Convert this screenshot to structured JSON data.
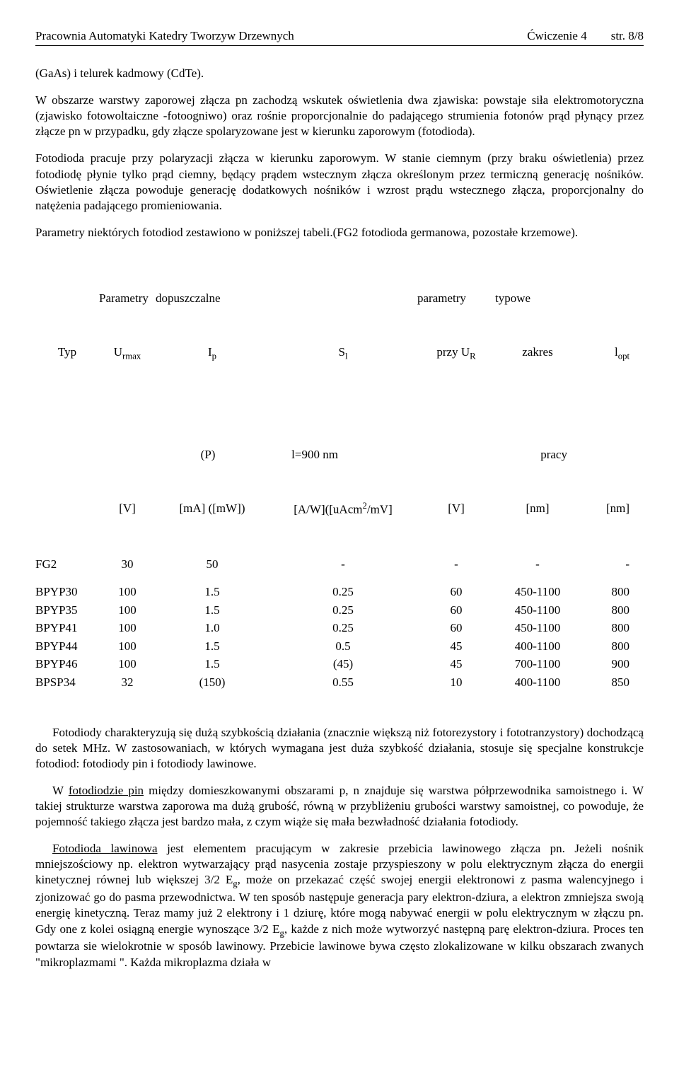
{
  "header": {
    "left": "Pracownia Automatyki Katedry Tworzyw Drzewnych",
    "center": "Ćwiczenie 4",
    "right": "str. 8/8"
  },
  "para1": "(GaAs) i telurek kadmowy (CdTe).",
  "para2": "W obszarze warstwy zaporowej złącza pn zachodzą wskutek oświetlenia dwa zjawiska: powstaje siła elektromotoryczna (zjawisko fotowoltaiczne -fotoogniwo) oraz rośnie proporcjonalnie do padającego strumienia fotonów prąd płynący przez złącze pn w przypadku, gdy złącze spolaryzowane jest w kierunku zaporowym (fotodioda).",
  "para3": "Fotodioda pracuje przy polaryzacji złącza w kierunku zaporowym. W stanie ciemnym (przy braku oświetlenia) przez fotodiodę płynie tylko prąd ciemny, będący prądem wstecznym złącza określonym przez termiczną generację nośników. Oświetlenie złącza powoduje generację dodatkowych nośników i wzrost prądu wstecznego złącza, proporcjonalny do natężenia padającego promieniowania.",
  "para4": "Parametry niektórych fotodiod zestawiono w poniższej tabeli.(FG2 fotodioda germanowa, pozostałe krzemowe).",
  "table": {
    "h1": {
      "a": "",
      "b": "Parametry",
      "c": "dopuszczalne",
      "d": "",
      "e": "parametry",
      "f": "typowe",
      "g": ""
    },
    "h2": {
      "a": "Typ",
      "b": "U",
      "b2": "rmax",
      "c": "I",
      "c2": "p",
      "d": "S",
      "d2": "l",
      "e": "przy U",
      "e2": "R",
      "f": "zakres",
      "g": "l",
      "g2": "opt"
    },
    "h3": {
      "a": "",
      "b": "",
      "c": "(P)",
      "d": "l=900 nm",
      "e": "",
      "f": "pracy",
      "g": ""
    },
    "h4": {
      "a": "",
      "b": "[V]",
      "c": "[mA] ([mW])",
      "d": "[A/W]([uAcm",
      "d2": "2",
      "d3": "/mV]",
      "e": "[V]",
      "f": "[nm]",
      "g": "[nm]"
    },
    "rows": [
      {
        "a": "FG2",
        "b": "30",
        "c": "50",
        "d": "-",
        "e": "-",
        "f": "-",
        "g": "-"
      },
      {
        "a": "BPYP30",
        "b": "100",
        "c": "1.5",
        "d": "0.25",
        "e": "60",
        "f": "450-1100",
        "g": "800"
      },
      {
        "a": "BPYP35",
        "b": "100",
        "c": "1.5",
        "d": "0.25",
        "e": "60",
        "f": "450-1100",
        "g": "800"
      },
      {
        "a": "BPYP41",
        "b": "100",
        "c": "1.0",
        "d": "0.25",
        "e": "60",
        "f": "450-1100",
        "g": "800"
      },
      {
        "a": "BPYP44",
        "b": "100",
        "c": "1.5",
        "d": "0.5",
        "e": "45",
        "f": "400-1100",
        "g": "800"
      },
      {
        "a": "BPYP46",
        "b": "100",
        "c": "1.5",
        "d": "(45)",
        "e": "45",
        "f": "700-1100",
        "g": "900"
      },
      {
        "a": "BPSP34",
        "b": "32",
        "c": "(150)",
        "d": "0.55",
        "e": "10",
        "f": "400-1100",
        "g": "850"
      }
    ]
  },
  "para5": "Fotodiody charakteryzują się dużą szybkością działania (znacznie większą niż fotorezystory i fototranzystory) dochodzącą do setek MHz. W zastosowaniach, w których wymagana jest duża szybkość działania, stosuje się specjalne konstrukcje fotodiod: fotodiody pin i fotodiody lawinowe.",
  "para6a": "W ",
  "para6u": "fotodiodzie pin",
  "para6b": " między domieszkowanymi obszarami p, n znajduje się warstwa półprzewodnika samoistnego i. W takiej strukturze warstwa zaporowa ma dużą grubość, równą w przybliżeniu grubości warstwy samoistnej, co powoduje, że pojemność takiego złącza jest bardzo mała, z czym wiąże się mała bezwładność działania fotodiody.",
  "para7u": "Fotodioda lawinowa",
  "para7a": " jest elementem pracującym w zakresie przebicia lawinowego złącza pn. Jeżeli nośnik mniejszościowy np. elektron wytwarzający prąd nasycenia zostaje przyspieszony w polu elektrycznym złącza do energii kinetycznej równej lub większej 3/2 E",
  "para7g": "g",
  "para7b": ", może on przekazać część swojej energii elektronowi z pasma walencyjnego i zjonizować go do pasma przewodnictwa. W ten sposób następuje generacja pary elektron-dziura, a elektron zmniejsza swoją energię kinetyczną. Teraz mamy już 2 elektrony i 1 dziurę, które mogą nabywać energii w polu elektrycznym w złączu pn. Gdy one z kolei osiągną energie wynoszące 3/2 E",
  "para7g2": "g",
  "para7c": ", każde z nich może wytworzyć następną parę elektron-dziura. Proces ten powtarza sie wielokrotnie w sposób lawinowy. Przebicie lawinowe bywa często zlokalizowane w kilku obszarach zwanych \"mikroplazmami \". Każda mikroplazma działa w"
}
